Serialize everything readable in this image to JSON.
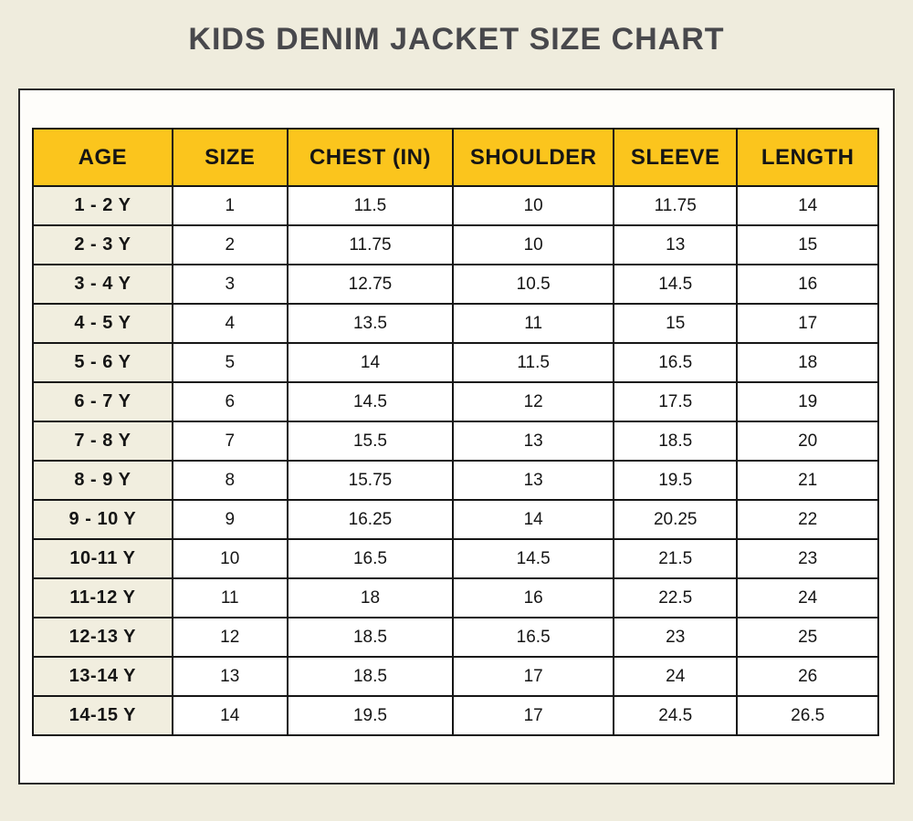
{
  "page": {
    "title": "KIDS DENIM JACKET SIZE CHART"
  },
  "colors": {
    "background": "#efecdd",
    "panel": "#fefdfa",
    "header_bg": "#fbc51d",
    "age_column_bg": "#f1eedf",
    "border": "#161616",
    "title_text": "#48484c",
    "body_text": "#151515"
  },
  "chart_data": {
    "type": "table",
    "title": "KIDS DENIM JACKET SIZE CHART",
    "columns": [
      "AGE",
      "SIZE",
      "CHEST (IN)",
      "SHOULDER",
      "SLEEVE",
      "LENGTH"
    ],
    "rows": [
      [
        "1 - 2 Y",
        "1",
        "11.5",
        "10",
        "11.75",
        "14"
      ],
      [
        "2 - 3 Y",
        "2",
        "11.75",
        "10",
        "13",
        "15"
      ],
      [
        "3 - 4 Y",
        "3",
        "12.75",
        "10.5",
        "14.5",
        "16"
      ],
      [
        "4 - 5 Y",
        "4",
        "13.5",
        "11",
        "15",
        "17"
      ],
      [
        "5 - 6 Y",
        "5",
        "14",
        "11.5",
        "16.5",
        "18"
      ],
      [
        "6 - 7 Y",
        "6",
        "14.5",
        "12",
        "17.5",
        "19"
      ],
      [
        "7 - 8 Y",
        "7",
        "15.5",
        "13",
        "18.5",
        "20"
      ],
      [
        "8 - 9 Y",
        "8",
        "15.75",
        "13",
        "19.5",
        "21"
      ],
      [
        "9 - 10 Y",
        "9",
        "16.25",
        "14",
        "20.25",
        "22"
      ],
      [
        "10-11 Y",
        "10",
        "16.5",
        "14.5",
        "21.5",
        "23"
      ],
      [
        "11-12 Y",
        "11",
        "18",
        "16",
        "22.5",
        "24"
      ],
      [
        "12-13 Y",
        "12",
        "18.5",
        "16.5",
        "23",
        "25"
      ],
      [
        "13-14 Y",
        "13",
        "18.5",
        "17",
        "24",
        "26"
      ],
      [
        "14-15 Y",
        "14",
        "19.5",
        "17",
        "24.5",
        "26.5"
      ]
    ],
    "layout": {
      "header_style": "yellow band, black bold uppercase text",
      "age_column_style": "cream background, bold text",
      "grid": "black solid borders, collapsed"
    }
  }
}
